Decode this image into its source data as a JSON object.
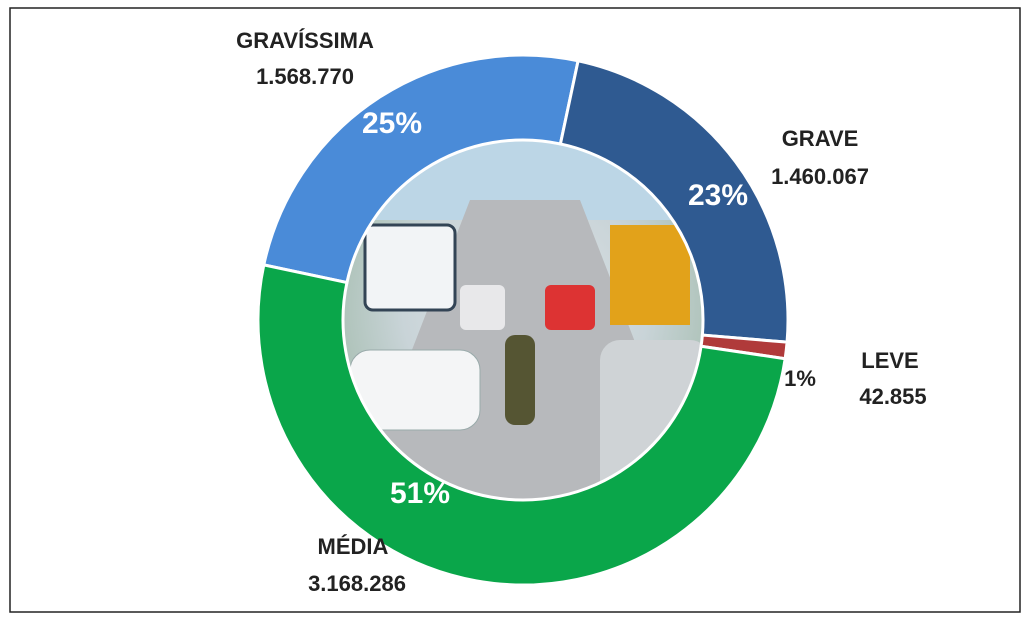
{
  "chart_data": {
    "type": "donut",
    "categories": [
      "GRAVÍSSIMA",
      "GRAVE",
      "LEVE",
      "MÉDIA"
    ],
    "counts": [
      "1.568.770",
      "1.460.067",
      "42.855",
      "3.168.286"
    ],
    "values": [
      25,
      23,
      1,
      51
    ],
    "value_labels": [
      "25%",
      "23%",
      "1%",
      "51%"
    ],
    "colors": [
      "#4a8bd8",
      "#2f5a91",
      "#b03a3a",
      "#0aa64a"
    ]
  }
}
